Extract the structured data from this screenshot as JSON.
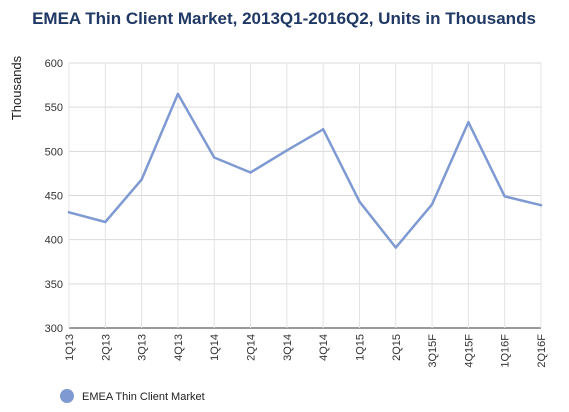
{
  "chart_data": {
    "type": "line",
    "title": "EMEA Thin Client Market, 2013Q1-2016Q2, Units in Thousands",
    "xlabel": "",
    "ylabel": "Thousands",
    "categories": [
      "1Q13",
      "2Q13",
      "3Q13",
      "4Q13",
      "1Q14",
      "2Q14",
      "3Q14",
      "4Q14",
      "1Q15",
      "2Q15",
      "3Q15F",
      "4Q15F",
      "1Q16F",
      "2Q16F"
    ],
    "series": [
      {
        "name": "EMEA Thin Client Market",
        "values": [
          431,
          420,
          468,
          565,
          493,
          476,
          501,
          525,
          443,
          391,
          440,
          533,
          449,
          439
        ],
        "color": "#7f9ad2"
      }
    ],
    "ylim": [
      300,
      600
    ],
    "yticks": [
      300,
      350,
      400,
      450,
      500,
      550,
      600
    ],
    "grid": true,
    "legend_position": "bottom-left"
  }
}
